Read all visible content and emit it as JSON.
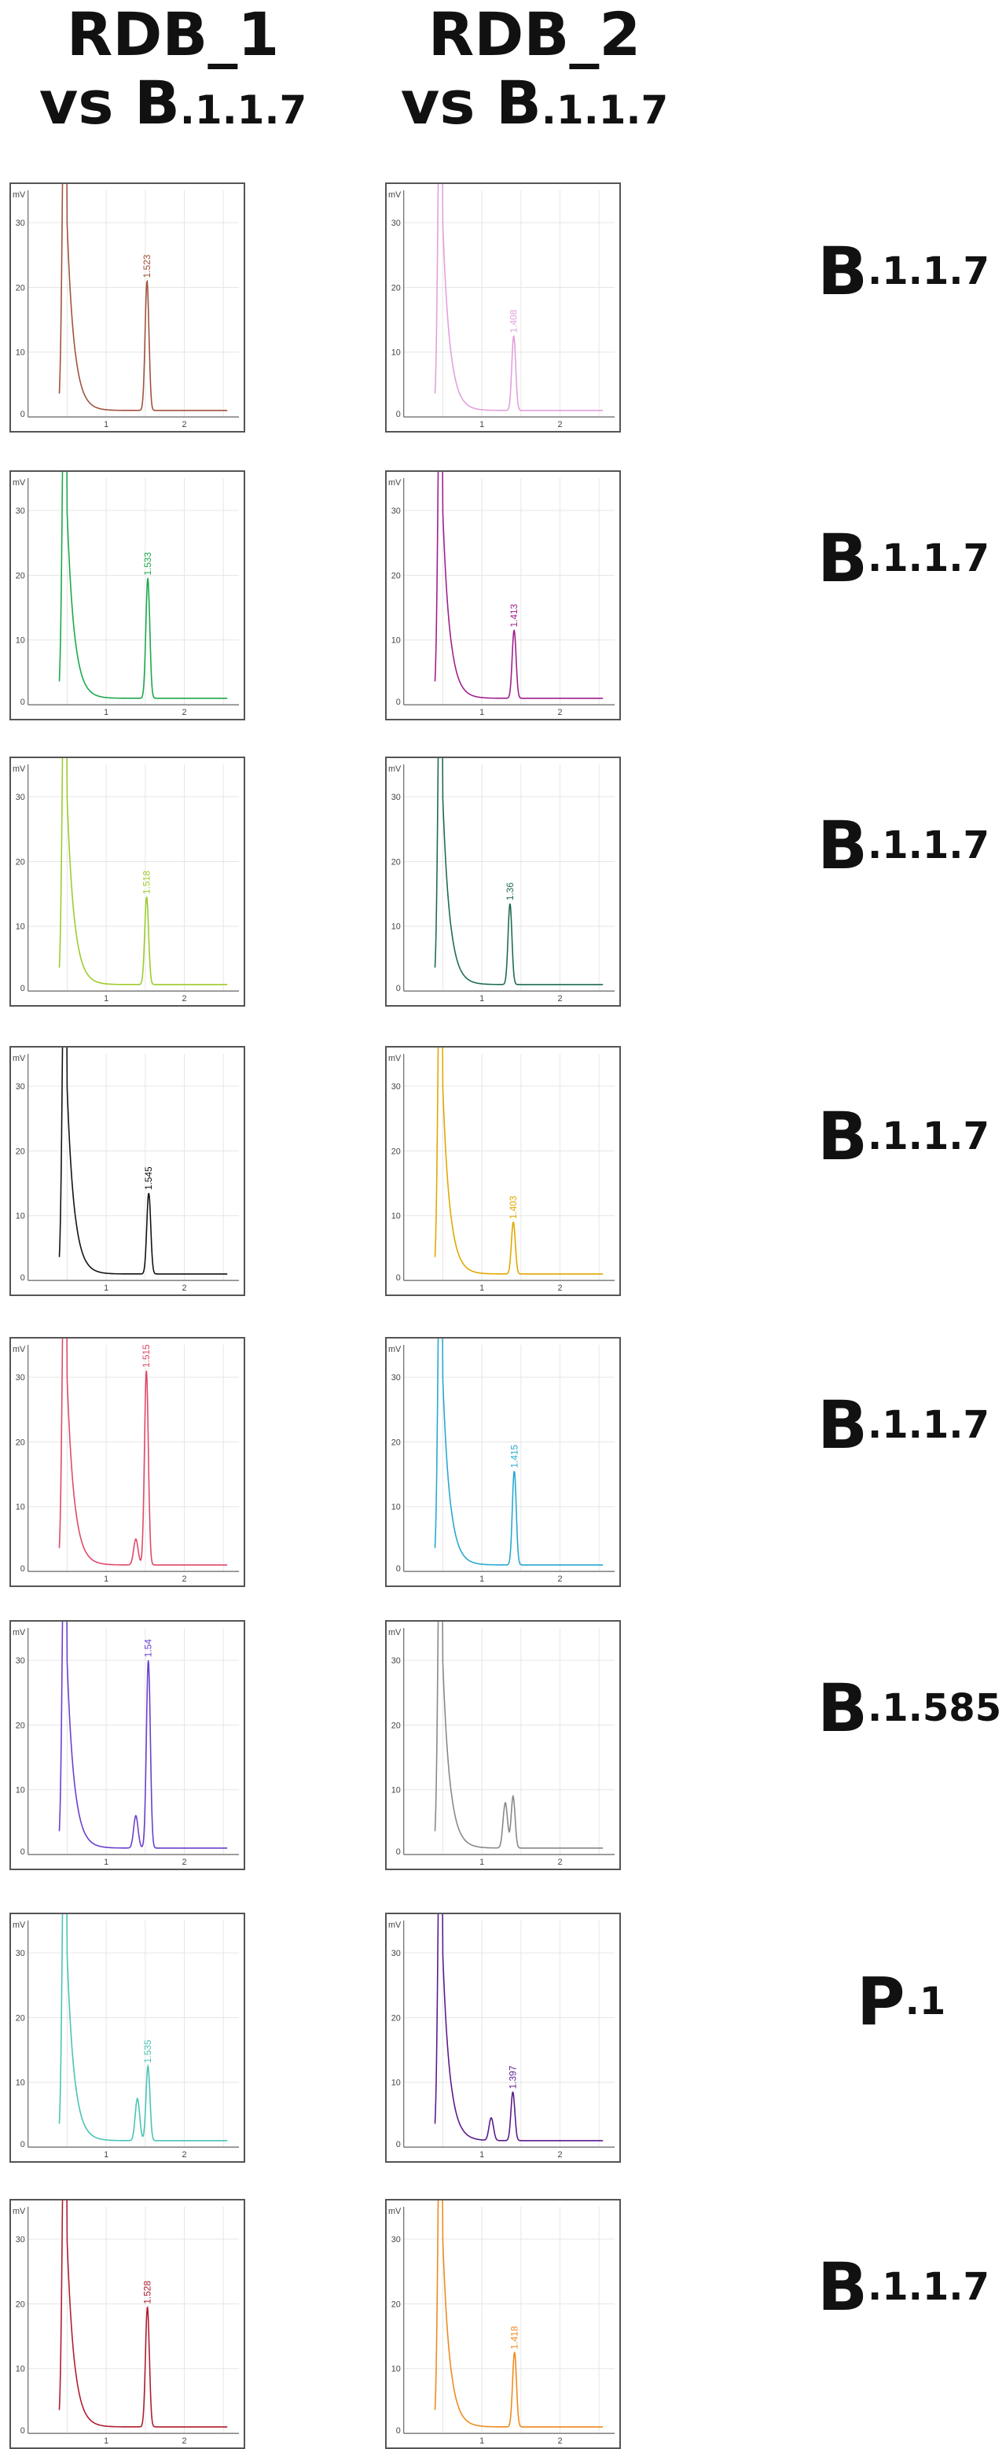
{
  "columns": [
    {
      "title_line1": "RDB_1",
      "title_line2_main": "vs B",
      "title_line2_sub": ".1.1.7"
    },
    {
      "title_line1": "RDB_2",
      "title_line2_main": "vs B",
      "title_line2_sub": ".1.1.7"
    }
  ],
  "rows": [
    {
      "label_main": "B",
      "label_sub": ".1.1.7"
    },
    {
      "label_main": "B",
      "label_sub": ".1.1.7"
    },
    {
      "label_main": "B",
      "label_sub": ".1.1.7"
    },
    {
      "label_main": "B",
      "label_sub": ".1.1.7"
    },
    {
      "label_main": "B",
      "label_sub": ".1.1.7"
    },
    {
      "label_main": "B",
      "label_sub": ".1.585"
    },
    {
      "label_main": "P",
      "label_sub": ".1"
    },
    {
      "label_main": "B",
      "label_sub": ".1.1.7"
    }
  ],
  "chart_axes": {
    "y_unit": "mV",
    "y_ticks": [
      "0",
      "10",
      "20",
      "30"
    ],
    "x_ticks": [
      "1",
      "2"
    ],
    "x_range": [
      0,
      2.7
    ],
    "y_range": [
      0,
      35
    ],
    "grid": true
  },
  "chart_data": [
    {
      "type": "line",
      "row": 1,
      "column": "RDB_1",
      "color": "#a0523c",
      "peak_x": 1.523,
      "peak_label": "1.523",
      "peak_height": 21,
      "shoulder": null
    },
    {
      "type": "line",
      "row": 1,
      "column": "RDB_2",
      "color": "#e2a0dc",
      "peak_x": 1.408,
      "peak_label": "1.408",
      "peak_height": 12.5,
      "shoulder": null
    },
    {
      "type": "line",
      "row": 2,
      "column": "RDB_1",
      "color": "#1aa84a",
      "peak_x": 1.533,
      "peak_label": "1.533",
      "peak_height": 19.5,
      "shoulder": null
    },
    {
      "type": "line",
      "row": 2,
      "column": "RDB_2",
      "color": "#a01e8c",
      "peak_x": 1.413,
      "peak_label": "1.413",
      "peak_height": 11.5,
      "shoulder": null
    },
    {
      "type": "line",
      "row": 3,
      "column": "RDB_1",
      "color": "#9ccc2c",
      "peak_x": 1.518,
      "peak_label": "1.518",
      "peak_height": 14.5,
      "shoulder": null
    },
    {
      "type": "line",
      "row": 3,
      "column": "RDB_2",
      "color": "#1e6b52",
      "peak_x": 1.36,
      "peak_label": "1.36",
      "peak_height": 13.5,
      "shoulder": null
    },
    {
      "type": "line",
      "row": 4,
      "column": "RDB_1",
      "color": "#111111",
      "peak_x": 1.545,
      "peak_label": "1.545",
      "peak_height": 13.5,
      "shoulder": null
    },
    {
      "type": "line",
      "row": 4,
      "column": "RDB_2",
      "color": "#e0a800",
      "peak_x": 1.403,
      "peak_label": "1.403",
      "peak_height": 9,
      "shoulder": null
    },
    {
      "type": "line",
      "row": 5,
      "column": "RDB_1",
      "color": "#e04868",
      "peak_x": 1.515,
      "peak_label": "1.515",
      "peak_height": 31,
      "shoulder": {
        "x": 1.38,
        "height": 5
      }
    },
    {
      "type": "line",
      "row": 5,
      "column": "RDB_2",
      "color": "#28a8d0",
      "peak_x": 1.415,
      "peak_label": "1.415",
      "peak_height": 15.5,
      "shoulder": null
    },
    {
      "type": "line",
      "row": 6,
      "column": "RDB_1",
      "color": "#6a3ecc",
      "peak_x": 1.54,
      "peak_label": "1.54",
      "peak_height": 30,
      "shoulder": {
        "x": 1.38,
        "height": 6
      }
    },
    {
      "type": "line",
      "row": 6,
      "column": "RDB_2",
      "color": "#888888",
      "peak_x": 1.4,
      "peak_label": "",
      "peak_height": 9,
      "shoulder": {
        "x": 1.3,
        "height": 8
      }
    },
    {
      "type": "line",
      "row": 7,
      "column": "RDB_1",
      "color": "#48c4b4",
      "peak_x": 1.535,
      "peak_label": "1.535",
      "peak_height": 12.5,
      "shoulder": {
        "x": 1.4,
        "height": 7.5
      }
    },
    {
      "type": "line",
      "row": 7,
      "column": "RDB_2",
      "color": "#5a1a8c",
      "peak_x": 1.397,
      "peak_label": "1.397",
      "peak_height": 8.5,
      "shoulder": {
        "x": 1.12,
        "height": 4.5
      }
    },
    {
      "type": "line",
      "row": 8,
      "column": "RDB_1",
      "color": "#b01c2c",
      "peak_x": 1.528,
      "peak_label": "1.528",
      "peak_height": 19.5,
      "shoulder": null
    },
    {
      "type": "line",
      "row": 8,
      "column": "RDB_2",
      "color": "#ee8a1e",
      "peak_x": 1.418,
      "peak_label": "1.418",
      "peak_height": 12.5,
      "shoulder": null
    }
  ]
}
